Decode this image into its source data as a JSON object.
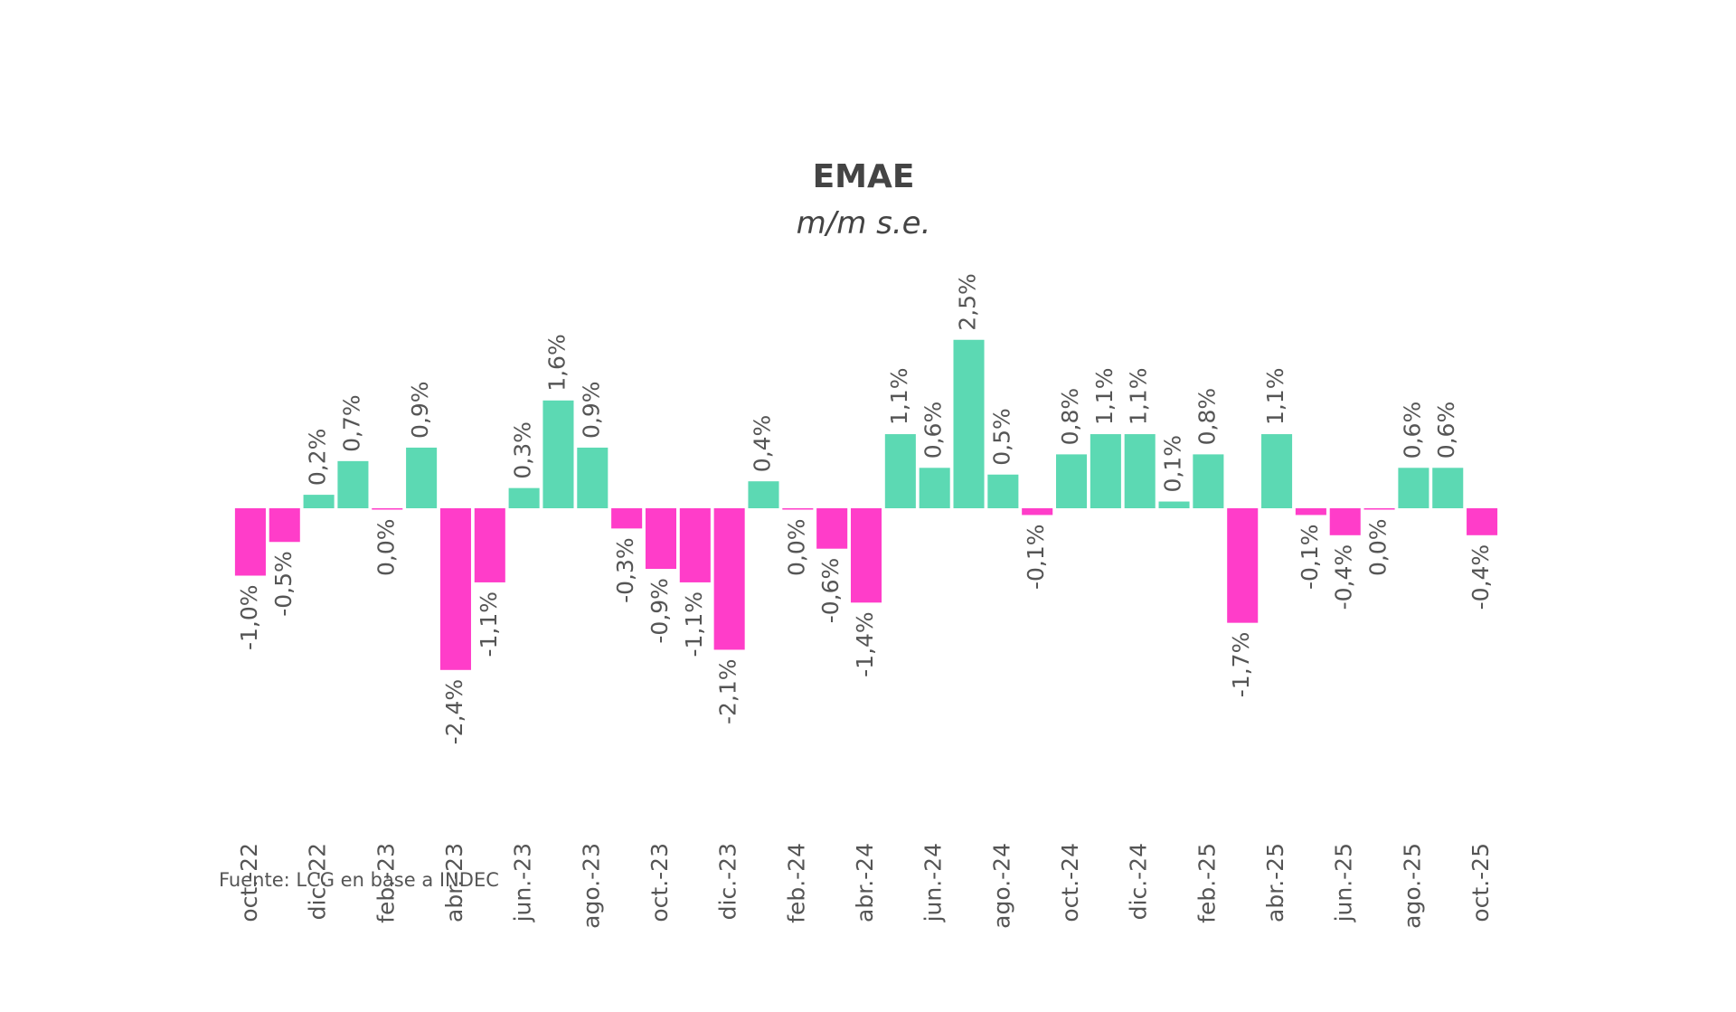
{
  "chart_data": {
    "type": "bar",
    "title": "EMAE",
    "subtitle": "m/m s.e.",
    "source": "Fuente: LCG en base a INDEC",
    "categories": [
      "oct.-22",
      null,
      "dic.-22",
      null,
      "feb.-23",
      null,
      "abr.-23",
      null,
      "jun.-23",
      null,
      "ago.-23",
      null,
      "oct.-23",
      null,
      "dic.-23",
      null,
      "feb.-24",
      null,
      "abr.-24",
      null,
      "jun.-24",
      null,
      "ago.-24",
      null,
      "oct.-24",
      null,
      "dic.-24",
      null,
      "feb.-25",
      null,
      "abr.-25",
      null,
      "jun.-25",
      null,
      "ago.-25",
      null,
      "oct.-25"
    ],
    "values": [
      -1.0,
      -0.5,
      0.2,
      0.7,
      0.0,
      0.9,
      -2.4,
      -1.1,
      0.3,
      1.6,
      0.9,
      -0.3,
      -0.9,
      -1.1,
      -2.1,
      0.4,
      0.0,
      -0.6,
      -1.4,
      1.1,
      0.6,
      2.5,
      0.5,
      -0.1,
      0.8,
      1.1,
      1.1,
      0.1,
      0.8,
      -1.7,
      1.1,
      -0.1,
      -0.4,
      0.0,
      0.6,
      0.6,
      -0.4
    ],
    "value_labels": [
      "-1,0%",
      "-0,5%",
      "0,2%",
      "0,7%",
      "0,0%",
      "0,9%",
      "-2,4%",
      "-1,1%",
      "0,3%",
      "1,6%",
      "0,9%",
      "-0,3%",
      "-0,9%",
      "-1,1%",
      "-2,1%",
      "0,4%",
      "0,0%",
      "-0,6%",
      "-1,4%",
      "1,1%",
      "0,6%",
      "2,5%",
      "0,5%",
      "-0,1%",
      "0,8%",
      "1,1%",
      "1,1%",
      "0,1%",
      "0,8%",
      "-1,7%",
      "1,1%",
      "-0,1%",
      "-0,4%",
      "0,0%",
      "0,6%",
      "0,6%",
      "-0,4%"
    ],
    "color_positive": "#5cd9b3",
    "color_negative": "#ff3dc9"
  }
}
